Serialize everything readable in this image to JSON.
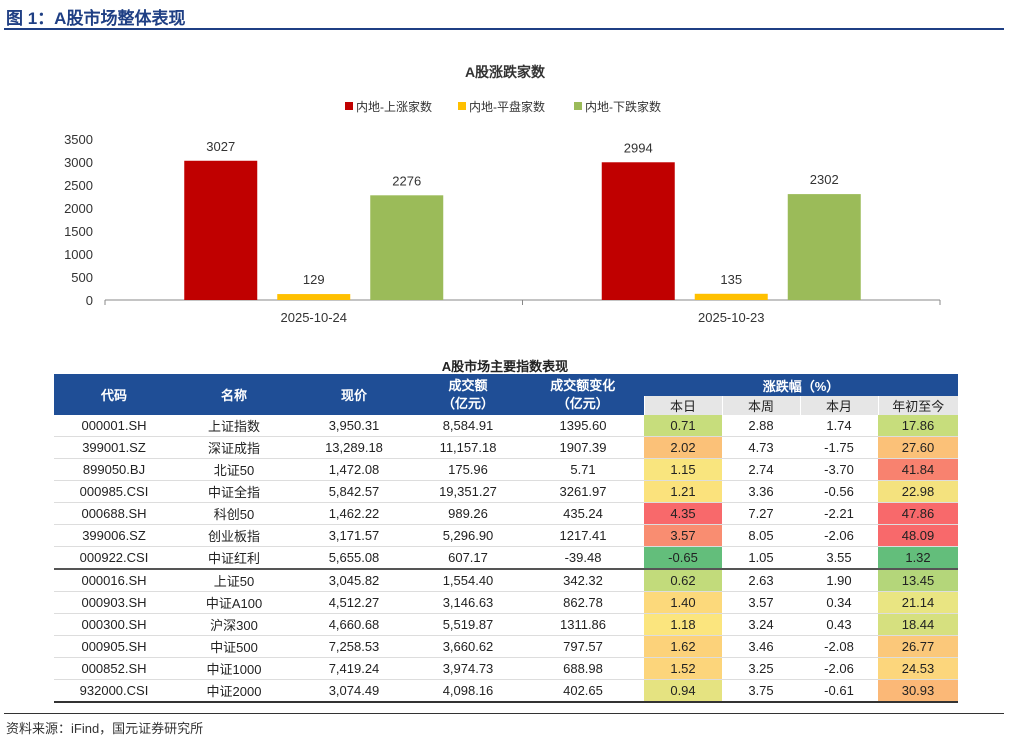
{
  "figure_title": "图 1：A股市场整体表现",
  "chart_data": {
    "type": "bar",
    "title": "A股涨跌家数",
    "categories": [
      "2025-10-24",
      "2025-10-23"
    ],
    "series": [
      {
        "name": "内地-上涨家数",
        "color": "#c00000",
        "values": [
          3027,
          2994
        ]
      },
      {
        "name": "内地-平盘家数",
        "color": "#ffc000",
        "values": [
          129,
          135
        ]
      },
      {
        "name": "内地-下跌家数",
        "color": "#9bbb59",
        "values": [
          2276,
          2302
        ]
      }
    ],
    "yticks": [
      0,
      500,
      1000,
      1500,
      2000,
      2500,
      3000,
      3500
    ],
    "ylim": [
      0,
      3500
    ],
    "legend": "top",
    "grid": false
  },
  "table": {
    "title": "A股市场主要指数表现",
    "headers": {
      "code": "代码",
      "name": "名称",
      "price": "现价",
      "turnover": "成交额\n（亿元）",
      "turnover_change": "成交额变化\n（亿元）",
      "change_group": "涨跌幅（%）",
      "day": "本日",
      "week": "本周",
      "month": "本月",
      "ytd": "年初至今"
    },
    "rows": [
      {
        "code": "000001.SH",
        "name": "上证指数",
        "price": "3,950.31",
        "turnover": "8,584.91",
        "turnover_change": "1395.60",
        "day": "0.71",
        "week": "2.88",
        "month": "1.74",
        "ytd": "17.86",
        "day_color": "#c7dd7c",
        "ytd_color": "#c7dd7c"
      },
      {
        "code": "399001.SZ",
        "name": "深证成指",
        "price": "13,289.18",
        "turnover": "11,157.18",
        "turnover_change": "1907.39",
        "day": "2.02",
        "week": "4.73",
        "month": "-1.75",
        "ytd": "27.60",
        "day_color": "#fbc178",
        "ytd_color": "#fbc178"
      },
      {
        "code": "899050.BJ",
        "name": "北证50",
        "price": "1,472.08",
        "turnover": "175.96",
        "turnover_change": "5.71",
        "day": "1.15",
        "week": "2.74",
        "month": "-3.70",
        "ytd": "41.84",
        "day_color": "#f9e57e",
        "ytd_color": "#f8826f"
      },
      {
        "code": "000985.CSI",
        "name": "中证全指",
        "price": "5,842.57",
        "turnover": "19,351.27",
        "turnover_change": "3261.97",
        "day": "1.21",
        "week": "3.36",
        "month": "-0.56",
        "ytd": "22.98",
        "day_color": "#fbe27c",
        "ytd_color": "#f4e27e"
      },
      {
        "code": "000688.SH",
        "name": "科创50",
        "price": "1,462.22",
        "turnover": "989.26",
        "turnover_change": "435.24",
        "day": "4.35",
        "week": "7.27",
        "month": "-2.21",
        "ytd": "47.86",
        "day_color": "#f8696b",
        "ytd_color": "#f8696b"
      },
      {
        "code": "399006.SZ",
        "name": "创业板指",
        "price": "3,171.57",
        "turnover": "5,296.90",
        "turnover_change": "1217.41",
        "day": "3.57",
        "week": "8.05",
        "month": "-2.06",
        "ytd": "48.09",
        "day_color": "#f98d71",
        "ytd_color": "#f8696b"
      },
      {
        "code": "000922.CSI",
        "name": "中证红利",
        "price": "5,655.08",
        "turnover": "607.17",
        "turnover_change": "-39.48",
        "day": "-0.65",
        "week": "1.05",
        "month": "3.55",
        "ytd": "1.32",
        "day_color": "#63be7b",
        "ytd_color": "#63be7b"
      },
      {
        "code": "000016.SH",
        "name": "上证50",
        "price": "3,045.82",
        "turnover": "1,554.40",
        "turnover_change": "342.32",
        "day": "0.62",
        "week": "2.63",
        "month": "1.90",
        "ytd": "13.45",
        "day_color": "#c2db7b",
        "ytd_color": "#b4d67a"
      },
      {
        "code": "000903.SH",
        "name": "中证A100",
        "price": "4,512.27",
        "turnover": "3,146.63",
        "turnover_change": "862.78",
        "day": "1.40",
        "week": "3.57",
        "month": "0.34",
        "ytd": "21.14",
        "day_color": "#fcd97b",
        "ytd_color": "#e9e582"
      },
      {
        "code": "000300.SH",
        "name": "沪深300",
        "price": "4,660.68",
        "turnover": "5,519.87",
        "turnover_change": "1311.86",
        "day": "1.18",
        "week": "3.24",
        "month": "0.43",
        "ytd": "18.44",
        "day_color": "#fbe57e",
        "ytd_color": "#d6e07f"
      },
      {
        "code": "000905.SH",
        "name": "中证500",
        "price": "7,258.53",
        "turnover": "3,660.62",
        "turnover_change": "797.57",
        "day": "1.62",
        "week": "3.46",
        "month": "-2.08",
        "ytd": "26.77",
        "day_color": "#fcd27a",
        "ytd_color": "#fbc87a"
      },
      {
        "code": "000852.SH",
        "name": "中证1000",
        "price": "7,419.24",
        "turnover": "3,974.73",
        "turnover_change": "688.98",
        "day": "1.52",
        "week": "3.25",
        "month": "-2.06",
        "ytd": "24.53",
        "day_color": "#fcd57b",
        "ytd_color": "#fcd67c"
      },
      {
        "code": "932000.CSI",
        "name": "中证2000",
        "price": "3,074.49",
        "turnover": "4,098.16",
        "turnover_change": "402.65",
        "day": "0.94",
        "week": "3.75",
        "month": "-0.61",
        "ytd": "30.93",
        "day_color": "#e5e381",
        "ytd_color": "#fbb877"
      }
    ]
  },
  "source": "资料来源：iFind，国元证券研究所"
}
